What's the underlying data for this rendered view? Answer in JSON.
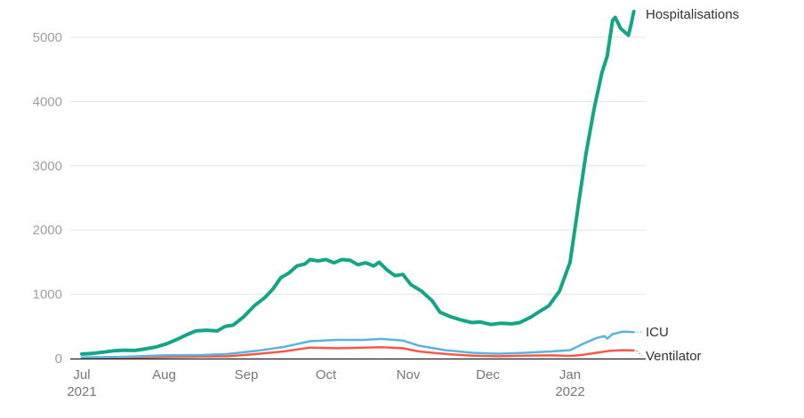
{
  "chart_data": {
    "type": "line",
    "title": "",
    "xlabel": "",
    "ylabel": "",
    "ylim": [
      0,
      5000
    ],
    "yticks": [
      "0",
      "1000",
      "2000",
      "3000",
      "4000",
      "5000"
    ],
    "xticks": [
      {
        "date": "2021-07-01",
        "label": "Jul",
        "sub": "2021"
      },
      {
        "date": "2021-08-01",
        "label": "Aug",
        "sub": ""
      },
      {
        "date": "2021-09-01",
        "label": "Sep",
        "sub": ""
      },
      {
        "date": "2021-10-01",
        "label": "Oct",
        "sub": ""
      },
      {
        "date": "2021-11-01",
        "label": "Nov",
        "sub": ""
      },
      {
        "date": "2021-12-01",
        "label": "Dec",
        "sub": ""
      },
      {
        "date": "2022-01-01",
        "label": "Jan",
        "sub": "2022"
      }
    ],
    "grid": true,
    "legend": "direct labels at line ends (right)",
    "series": [
      {
        "name": "Hospitalisations",
        "color": "#12a586",
        "points": [
          [
            "2021-07-01",
            70
          ],
          [
            "2021-07-05",
            80
          ],
          [
            "2021-07-09",
            100
          ],
          [
            "2021-07-13",
            120
          ],
          [
            "2021-07-17",
            130
          ],
          [
            "2021-07-21",
            125
          ],
          [
            "2021-07-25",
            150
          ],
          [
            "2021-07-29",
            180
          ],
          [
            "2021-08-02",
            230
          ],
          [
            "2021-08-06",
            300
          ],
          [
            "2021-08-09",
            360
          ],
          [
            "2021-08-13",
            430
          ],
          [
            "2021-08-17",
            440
          ],
          [
            "2021-08-21",
            430
          ],
          [
            "2021-08-24",
            500
          ],
          [
            "2021-08-27",
            520
          ],
          [
            "2021-08-31",
            650
          ],
          [
            "2021-09-04",
            820
          ],
          [
            "2021-09-08",
            950
          ],
          [
            "2021-09-11",
            1080
          ],
          [
            "2021-09-14",
            1260
          ],
          [
            "2021-09-17",
            1330
          ],
          [
            "2021-09-20",
            1440
          ],
          [
            "2021-09-23",
            1470
          ],
          [
            "2021-09-25",
            1540
          ],
          [
            "2021-09-28",
            1520
          ],
          [
            "2021-10-01",
            1540
          ],
          [
            "2021-10-04",
            1490
          ],
          [
            "2021-10-07",
            1540
          ],
          [
            "2021-10-10",
            1530
          ],
          [
            "2021-10-13",
            1460
          ],
          [
            "2021-10-16",
            1490
          ],
          [
            "2021-10-19",
            1440
          ],
          [
            "2021-10-21",
            1500
          ],
          [
            "2021-10-24",
            1380
          ],
          [
            "2021-10-27",
            1290
          ],
          [
            "2021-10-30",
            1310
          ],
          [
            "2021-11-02",
            1150
          ],
          [
            "2021-11-06",
            1050
          ],
          [
            "2021-11-10",
            900
          ],
          [
            "2021-11-13",
            720
          ],
          [
            "2021-11-17",
            650
          ],
          [
            "2021-11-21",
            600
          ],
          [
            "2021-11-25",
            560
          ],
          [
            "2021-11-28",
            570
          ],
          [
            "2021-12-02",
            530
          ],
          [
            "2021-12-06",
            550
          ],
          [
            "2021-12-10",
            540
          ],
          [
            "2021-12-13",
            560
          ],
          [
            "2021-12-17",
            640
          ],
          [
            "2021-12-20",
            720
          ],
          [
            "2021-12-24",
            820
          ],
          [
            "2021-12-28",
            1050
          ],
          [
            "2022-01-01",
            1500
          ],
          [
            "2022-01-04",
            2360
          ],
          [
            "2022-01-07",
            3190
          ],
          [
            "2022-01-10",
            3880
          ],
          [
            "2022-01-13",
            4450
          ],
          [
            "2022-01-15",
            4710
          ],
          [
            "2022-01-17",
            5260
          ],
          [
            "2022-01-18",
            5310
          ],
          [
            "2022-01-20",
            5140
          ],
          [
            "2022-01-23",
            5030
          ],
          [
            "2022-01-24",
            5200
          ],
          [
            "2022-01-25",
            5400
          ]
        ]
      },
      {
        "name": "ICU",
        "color": "#5ab4dc",
        "points": [
          [
            "2021-07-01",
            20
          ],
          [
            "2021-07-15",
            25
          ],
          [
            "2021-08-01",
            50
          ],
          [
            "2021-08-15",
            55
          ],
          [
            "2021-08-25",
            70
          ],
          [
            "2021-09-05",
            120
          ],
          [
            "2021-09-15",
            180
          ],
          [
            "2021-09-25",
            270
          ],
          [
            "2021-10-05",
            290
          ],
          [
            "2021-10-15",
            290
          ],
          [
            "2021-10-22",
            305
          ],
          [
            "2021-10-30",
            280
          ],
          [
            "2021-11-05",
            200
          ],
          [
            "2021-11-15",
            130
          ],
          [
            "2021-11-25",
            90
          ],
          [
            "2021-12-05",
            75
          ],
          [
            "2021-12-15",
            90
          ],
          [
            "2021-12-25",
            110
          ],
          [
            "2022-01-01",
            130
          ],
          [
            "2022-01-06",
            230
          ],
          [
            "2022-01-11",
            320
          ],
          [
            "2022-01-14",
            350
          ],
          [
            "2022-01-15",
            310
          ],
          [
            "2022-01-17",
            380
          ],
          [
            "2022-01-21",
            420
          ],
          [
            "2022-01-25",
            410
          ]
        ]
      },
      {
        "name": "Ventilator",
        "color": "#f4594a",
        "points": [
          [
            "2021-07-01",
            5
          ],
          [
            "2021-07-15",
            10
          ],
          [
            "2021-08-01",
            25
          ],
          [
            "2021-08-15",
            30
          ],
          [
            "2021-08-25",
            35
          ],
          [
            "2021-09-05",
            70
          ],
          [
            "2021-09-15",
            110
          ],
          [
            "2021-09-25",
            170
          ],
          [
            "2021-10-05",
            160
          ],
          [
            "2021-10-15",
            170
          ],
          [
            "2021-10-22",
            175
          ],
          [
            "2021-10-30",
            160
          ],
          [
            "2021-11-05",
            110
          ],
          [
            "2021-11-15",
            70
          ],
          [
            "2021-11-25",
            45
          ],
          [
            "2021-12-05",
            35
          ],
          [
            "2021-12-15",
            45
          ],
          [
            "2021-12-25",
            50
          ],
          [
            "2022-01-01",
            40
          ],
          [
            "2022-01-06",
            60
          ],
          [
            "2022-01-11",
            90
          ],
          [
            "2022-01-16",
            120
          ],
          [
            "2022-01-21",
            130
          ],
          [
            "2022-01-25",
            125
          ]
        ]
      }
    ]
  }
}
